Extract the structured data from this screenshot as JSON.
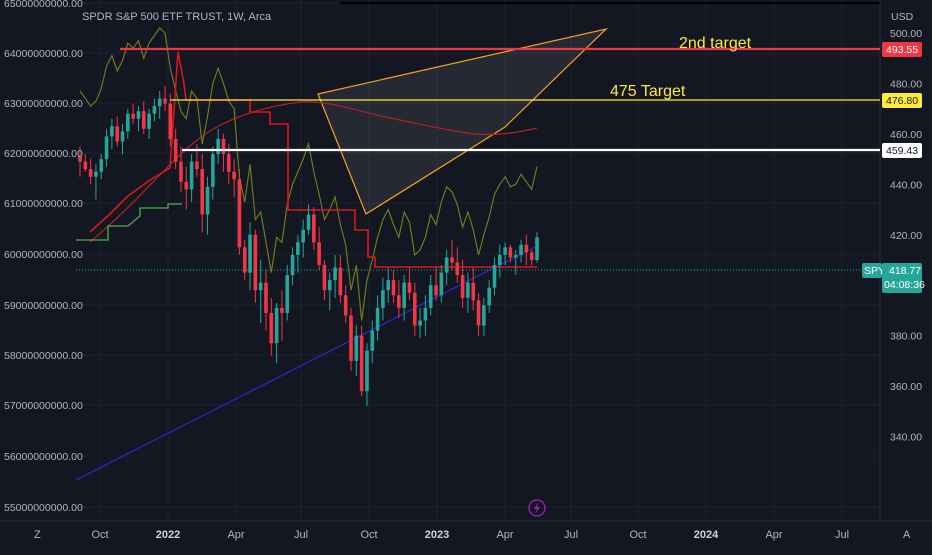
{
  "header": {
    "symbol_title": "SPDR S&P 500 ETF TRUST, 1W, Arca"
  },
  "price_axis": {
    "currency": "USD",
    "ticks": [
      "500.00",
      "480.00",
      "460.00",
      "440.00",
      "420.00",
      "400.00",
      "380.00",
      "360.00",
      "340.00"
    ]
  },
  "left_axis": {
    "ticks": [
      "65000000000.00",
      "64000000000.00",
      "63000000000.00",
      "62000000000.00",
      "61000000000.00",
      "60000000000.00",
      "59000000000.00",
      "58000000000.00",
      "57000000000.00",
      "56000000000.00",
      "55000000000.00"
    ]
  },
  "time_axis": {
    "ticks": [
      "Oct",
      "2022",
      "Apr",
      "Jul",
      "Oct",
      "2023",
      "Apr",
      "Jul",
      "Oct",
      "2024",
      "Apr",
      "Jul"
    ],
    "bold": [
      "2022",
      "2023",
      "2024"
    ]
  },
  "corner_buttons": {
    "left": "Z",
    "right": "A"
  },
  "annotations": {
    "second_target": "2nd target",
    "target_475": "475 Target"
  },
  "price_badges": {
    "line_493": "493.55",
    "line_476": "476.80",
    "line_459": "459.43",
    "symbol": "SPY",
    "last_price": "418.77",
    "countdown": "04:08:36"
  },
  "colors": {
    "background": "#131722",
    "bull": "#26a69a",
    "bear": "#f23645",
    "red_line": "#f23645",
    "yellow_line": "#ffeb3b",
    "white_line": "#ffffff",
    "wedge": "#f7a21b",
    "trend_blue": "#2929c8",
    "olive_series": "#6f7a1e",
    "green_series": "#4caf50",
    "dark_red_series": "#b22222",
    "lightning": "#9c27b0"
  },
  "icons": {
    "lightning": "lightning-icon"
  },
  "chart_data": {
    "type": "candlestick",
    "title": "SPDR S&P 500 ETF TRUST, 1W, Arca",
    "ylabel": "USD",
    "ylim": [
      336,
      508
    ],
    "last_price": 418.77,
    "horizontal_levels": [
      {
        "value": 493.55,
        "label": "2nd target"
      },
      {
        "value": 476.8,
        "label": "475 Target"
      },
      {
        "value": 459.43
      }
    ],
    "candles_ohlc": [
      [
        451,
        455,
        443,
        449
      ],
      [
        449,
        452,
        445,
        446
      ],
      [
        446,
        450,
        440,
        443
      ],
      [
        443,
        448,
        434,
        445
      ],
      [
        445,
        452,
        442,
        450
      ],
      [
        450,
        462,
        447,
        459
      ],
      [
        459,
        466,
        454,
        463
      ],
      [
        463,
        467,
        455,
        457
      ],
      [
        457,
        464,
        452,
        461
      ],
      [
        461,
        470,
        458,
        468
      ],
      [
        468,
        472,
        464,
        466
      ],
      [
        466,
        471,
        461,
        469
      ],
      [
        469,
        473,
        460,
        462
      ],
      [
        462,
        470,
        458,
        468
      ],
      [
        468,
        474,
        465,
        471
      ],
      [
        471,
        477,
        466,
        474
      ],
      [
        474,
        479,
        469,
        472
      ],
      [
        472,
        476,
        455,
        458
      ],
      [
        458,
        462,
        446,
        449
      ],
      [
        449,
        455,
        437,
        441
      ],
      [
        441,
        447,
        430,
        438
      ],
      [
        438,
        452,
        433,
        449
      ],
      [
        449,
        456,
        443,
        446
      ],
      [
        446,
        452,
        421,
        428
      ],
      [
        428,
        443,
        420,
        439
      ],
      [
        439,
        455,
        434,
        452
      ],
      [
        452,
        462,
        448,
        458
      ],
      [
        458,
        460,
        445,
        452
      ],
      [
        452,
        456,
        440,
        445
      ],
      [
        445,
        450,
        435,
        442
      ],
      [
        442,
        446,
        412,
        415
      ],
      [
        415,
        418,
        402,
        405
      ],
      [
        405,
        425,
        398,
        420
      ],
      [
        420,
        422,
        393,
        398
      ],
      [
        398,
        410,
        385,
        401
      ],
      [
        401,
        406,
        382,
        389
      ],
      [
        389,
        395,
        372,
        377
      ],
      [
        377,
        393,
        369,
        391
      ],
      [
        391,
        398,
        378,
        389
      ],
      [
        389,
        408,
        386,
        404
      ],
      [
        404,
        415,
        400,
        412
      ],
      [
        412,
        420,
        405,
        417
      ],
      [
        417,
        426,
        411,
        422
      ],
      [
        422,
        432,
        420,
        428
      ],
      [
        428,
        431,
        414,
        417
      ],
      [
        417,
        423,
        406,
        408
      ],
      [
        408,
        410,
        394,
        398
      ],
      [
        398,
        405,
        390,
        402
      ],
      [
        402,
        412,
        395,
        407
      ],
      [
        407,
        412,
        393,
        396
      ],
      [
        396,
        400,
        385,
        388
      ],
      [
        388,
        391,
        366,
        370
      ],
      [
        370,
        384,
        364,
        380
      ],
      [
        380,
        384,
        356,
        358
      ],
      [
        358,
        377,
        352,
        374
      ],
      [
        374,
        386,
        369,
        382
      ],
      [
        382,
        396,
        378,
        391
      ],
      [
        391,
        403,
        386,
        398
      ],
      [
        398,
        407,
        393,
        402
      ],
      [
        402,
        406,
        393,
        396
      ],
      [
        396,
        402,
        387,
        391
      ],
      [
        391,
        404,
        386,
        401
      ],
      [
        401,
        407,
        394,
        397
      ],
      [
        397,
        401,
        380,
        384
      ],
      [
        384,
        391,
        379,
        386
      ],
      [
        386,
        396,
        380,
        391
      ],
      [
        391,
        404,
        388,
        400
      ],
      [
        400,
        407,
        394,
        396
      ],
      [
        396,
        408,
        393,
        405
      ],
      [
        405,
        414,
        400,
        411
      ],
      [
        411,
        418,
        406,
        409
      ],
      [
        409,
        415,
        401,
        404
      ],
      [
        404,
        410,
        391,
        395
      ],
      [
        395,
        405,
        389,
        401
      ],
      [
        401,
        407,
        390,
        394
      ],
      [
        394,
        397,
        380,
        384
      ],
      [
        384,
        395,
        380,
        392
      ],
      [
        392,
        402,
        389,
        399
      ],
      [
        399,
        411,
        396,
        408
      ],
      [
        408,
        416,
        403,
        412
      ],
      [
        412,
        417,
        408,
        415
      ],
      [
        415,
        416,
        409,
        411
      ],
      [
        411,
        414,
        404,
        412
      ],
      [
        412,
        418,
        409,
        416
      ],
      [
        416,
        420,
        408,
        413
      ],
      [
        413,
        414,
        408,
        410
      ],
      [
        410,
        421,
        409,
        419
      ]
    ]
  }
}
